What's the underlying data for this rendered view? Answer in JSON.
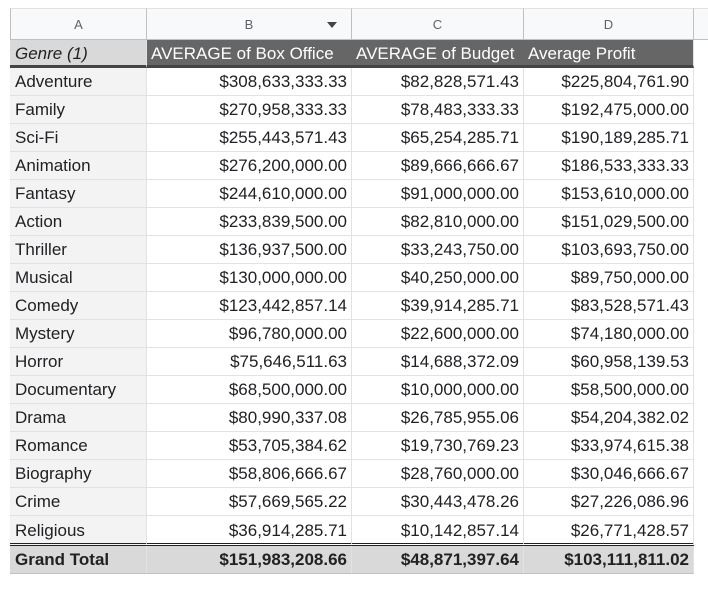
{
  "columns": [
    "A",
    "B",
    "C",
    "D"
  ],
  "header": {
    "genre": "Genre (1)",
    "box_office": "AVERAGE of Box Office",
    "budget": "AVERAGE of Budget",
    "profit": "Average Profit"
  },
  "rows": [
    {
      "genre": "Adventure",
      "box_office": "$308,633,333.33",
      "budget": "$82,828,571.43",
      "profit": "$225,804,761.90"
    },
    {
      "genre": "Family",
      "box_office": "$270,958,333.33",
      "budget": "$78,483,333.33",
      "profit": "$192,475,000.00"
    },
    {
      "genre": "Sci-Fi",
      "box_office": "$255,443,571.43",
      "budget": "$65,254,285.71",
      "profit": "$190,189,285.71"
    },
    {
      "genre": "Animation",
      "box_office": "$276,200,000.00",
      "budget": "$89,666,666.67",
      "profit": "$186,533,333.33"
    },
    {
      "genre": "Fantasy",
      "box_office": "$244,610,000.00",
      "budget": "$91,000,000.00",
      "profit": "$153,610,000.00"
    },
    {
      "genre": "Action",
      "box_office": "$233,839,500.00",
      "budget": "$82,810,000.00",
      "profit": "$151,029,500.00"
    },
    {
      "genre": "Thriller",
      "box_office": "$136,937,500.00",
      "budget": "$33,243,750.00",
      "profit": "$103,693,750.00"
    },
    {
      "genre": "Musical",
      "box_office": "$130,000,000.00",
      "budget": "$40,250,000.00",
      "profit": "$89,750,000.00"
    },
    {
      "genre": "Comedy",
      "box_office": "$123,442,857.14",
      "budget": "$39,914,285.71",
      "profit": "$83,528,571.43"
    },
    {
      "genre": "Mystery",
      "box_office": "$96,780,000.00",
      "budget": "$22,600,000.00",
      "profit": "$74,180,000.00"
    },
    {
      "genre": "Horror",
      "box_office": "$75,646,511.63",
      "budget": "$14,688,372.09",
      "profit": "$60,958,139.53"
    },
    {
      "genre": "Documentary",
      "box_office": "$68,500,000.00",
      "budget": "$10,000,000.00",
      "profit": "$58,500,000.00"
    },
    {
      "genre": "Drama",
      "box_office": "$80,990,337.08",
      "budget": "$26,785,955.06",
      "profit": "$54,204,382.02"
    },
    {
      "genre": "Romance",
      "box_office": "$53,705,384.62",
      "budget": "$19,730,769.23",
      "profit": "$33,974,615.38"
    },
    {
      "genre": "Biography",
      "box_office": "$58,806,666.67",
      "budget": "$28,760,000.00",
      "profit": "$30,046,666.67"
    },
    {
      "genre": "Crime",
      "box_office": "$57,669,565.22",
      "budget": "$30,443,478.26",
      "profit": "$27,226,086.96"
    },
    {
      "genre": "Religious",
      "box_office": "$36,914,285.71",
      "budget": "$10,142,857.14",
      "profit": "$26,771,428.57"
    }
  ],
  "total": {
    "label": "Grand Total",
    "box_office": "$151,983,208.66",
    "budget": "$48,871,397.64",
    "profit": "$103,111,811.02"
  },
  "icons": {
    "column_b_filter": "dropdown-arrow-icon"
  },
  "colors": {
    "header_bg": "#666666",
    "total_bg": "#d9d9d9",
    "label_col_bg": "#f3f3f3"
  }
}
